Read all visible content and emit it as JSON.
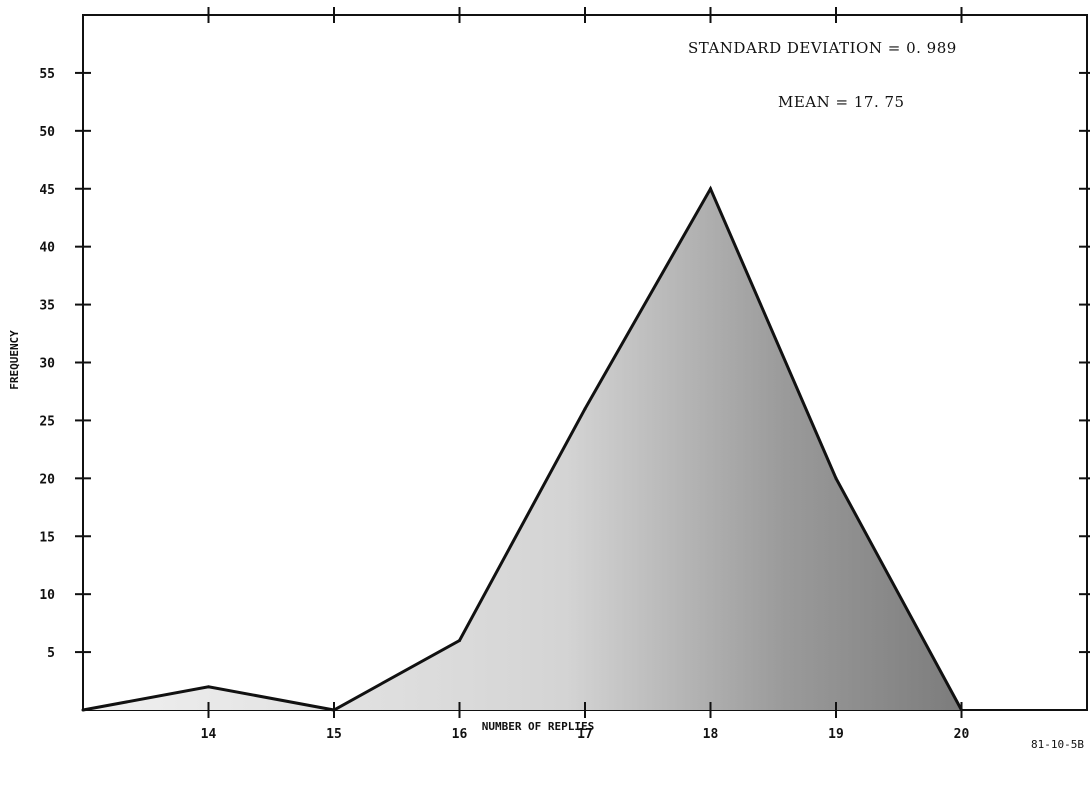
{
  "chart_data": {
    "type": "area",
    "title": "",
    "xlabel": "NUMBER OF REPLIES",
    "ylabel": "FREQUENCY",
    "x": [
      13,
      14,
      15,
      16,
      17,
      18,
      19,
      20
    ],
    "values": [
      0,
      2,
      0,
      6,
      26,
      45,
      20,
      0
    ],
    "xticks": [
      14,
      15,
      16,
      17,
      18,
      19,
      20
    ],
    "xtick_labels": [
      "14",
      "15",
      "16",
      "17",
      "18",
      "19",
      "20"
    ],
    "yticks": [
      5,
      10,
      15,
      20,
      25,
      30,
      35,
      40,
      45,
      50,
      55
    ],
    "ytick_labels": [
      "5",
      "10",
      "15",
      "20",
      "25",
      "30",
      "35",
      "40",
      "45",
      "50",
      "55"
    ],
    "xlim": [
      13,
      21
    ],
    "ylim": [
      0,
      60
    ],
    "grid": false,
    "annotations": {
      "std": "STANDARD DEVIATION = 0. 989",
      "mean": "MEAN = 17. 75"
    },
    "figure_id": "81-10-5B",
    "colors": {
      "line": "#111111",
      "fill_light": "#e6e6e6",
      "fill_dark": "#8a8a8a"
    }
  }
}
